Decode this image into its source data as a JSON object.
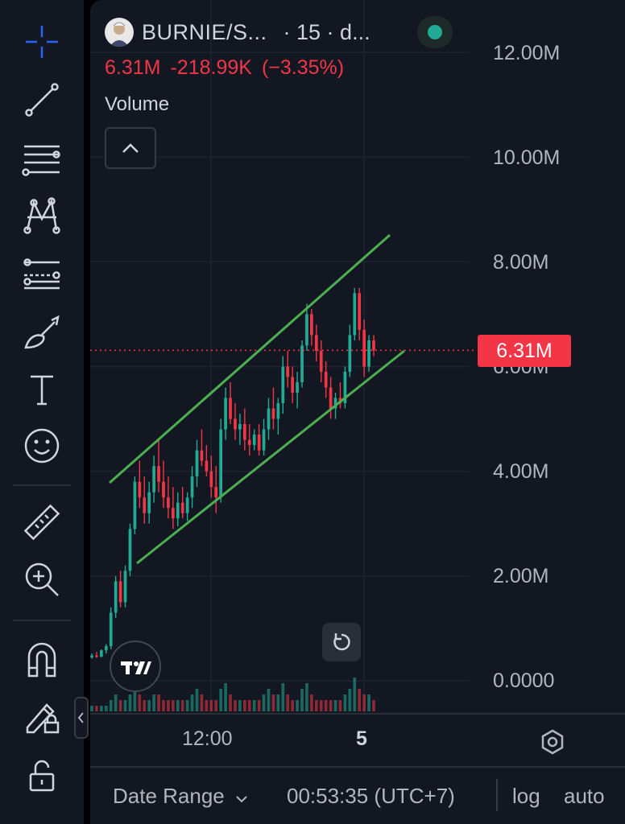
{
  "header": {
    "symbol": "BURNIE/S...",
    "interval": "· 15 · d...",
    "status_color": "#22ab94"
  },
  "price": {
    "last": "6.31M",
    "change": "-218.99K",
    "change_pct": "(−3.35%)",
    "tag": "6.31M"
  },
  "indicator": {
    "volume_label": "Volume"
  },
  "tools": [
    "crosshair-icon",
    "trend-line-icon",
    "fib-levels-icon",
    "pattern-icon",
    "forecast-icon",
    "brush-icon",
    "text-tool-icon",
    "emoji-icon",
    "ruler-icon",
    "zoom-in-icon",
    "magnet-icon",
    "lock-drawing-icon",
    "unlock-icon"
  ],
  "price_axis": [
    "12.00M",
    "10.00M",
    "8.00M",
    "6.00M",
    "4.00M",
    "2.00M",
    "0.0000"
  ],
  "time_axis": {
    "label_1": "12:00",
    "label_2": "5"
  },
  "bottom_bar": {
    "date_range": "Date Range",
    "clock": "00:53:35 (UTC+7)",
    "log": "log",
    "auto": "auto"
  },
  "colors": {
    "up": "#22ab94",
    "down": "#f23645",
    "channel": "#4caf50",
    "background": "#131722"
  },
  "chart_data": {
    "type": "candlestick",
    "interval": "15",
    "y_axis_ticks": [
      "12.00M",
      "10.00M",
      "8.00M",
      "6.00M",
      "4.00M",
      "2.00M",
      "0.0000"
    ],
    "ylim": [
      0,
      12800000
    ],
    "last_price": 6310000,
    "candles": [
      {
        "o": 0.45,
        "h": 0.52,
        "l": 0.42,
        "c": 0.48
      },
      {
        "o": 0.48,
        "h": 0.55,
        "l": 0.44,
        "c": 0.46
      },
      {
        "o": 0.46,
        "h": 0.6,
        "l": 0.45,
        "c": 0.58
      },
      {
        "o": 0.58,
        "h": 0.7,
        "l": 0.52,
        "c": 0.66
      },
      {
        "o": 0.66,
        "h": 1.4,
        "l": 0.6,
        "c": 1.3
      },
      {
        "o": 1.3,
        "h": 2.0,
        "l": 1.2,
        "c": 1.9
      },
      {
        "o": 1.9,
        "h": 2.1,
        "l": 1.4,
        "c": 1.5
      },
      {
        "o": 1.5,
        "h": 2.2,
        "l": 1.4,
        "c": 2.1
      },
      {
        "o": 2.1,
        "h": 3.0,
        "l": 2.0,
        "c": 2.9
      },
      {
        "o": 2.9,
        "h": 3.9,
        "l": 2.8,
        "c": 3.8
      },
      {
        "o": 3.8,
        "h": 4.2,
        "l": 3.3,
        "c": 3.5
      },
      {
        "o": 3.5,
        "h": 3.9,
        "l": 3.0,
        "c": 3.2
      },
      {
        "o": 3.2,
        "h": 3.8,
        "l": 3.0,
        "c": 3.6
      },
      {
        "o": 3.6,
        "h": 4.3,
        "l": 3.4,
        "c": 4.1
      },
      {
        "o": 4.1,
        "h": 4.6,
        "l": 3.6,
        "c": 3.8
      },
      {
        "o": 3.8,
        "h": 4.2,
        "l": 3.3,
        "c": 3.5
      },
      {
        "o": 3.5,
        "h": 3.9,
        "l": 3.1,
        "c": 3.3
      },
      {
        "o": 3.3,
        "h": 3.7,
        "l": 2.9,
        "c": 3.1
      },
      {
        "o": 3.1,
        "h": 3.6,
        "l": 2.95,
        "c": 3.4
      },
      {
        "o": 3.4,
        "h": 3.7,
        "l": 3.1,
        "c": 3.2
      },
      {
        "o": 3.2,
        "h": 3.6,
        "l": 3.05,
        "c": 3.5
      },
      {
        "o": 3.5,
        "h": 4.1,
        "l": 3.3,
        "c": 3.9
      },
      {
        "o": 3.9,
        "h": 4.6,
        "l": 3.7,
        "c": 4.4
      },
      {
        "o": 4.4,
        "h": 4.8,
        "l": 4.1,
        "c": 4.2
      },
      {
        "o": 4.2,
        "h": 4.5,
        "l": 3.9,
        "c": 4.0
      },
      {
        "o": 4.0,
        "h": 4.3,
        "l": 3.5,
        "c": 3.7
      },
      {
        "o": 3.7,
        "h": 4.1,
        "l": 3.2,
        "c": 3.5
      },
      {
        "o": 3.5,
        "h": 5.0,
        "l": 3.4,
        "c": 4.8
      },
      {
        "o": 4.8,
        "h": 5.6,
        "l": 4.6,
        "c": 5.4
      },
      {
        "o": 5.4,
        "h": 5.7,
        "l": 4.9,
        "c": 5.0
      },
      {
        "o": 5.0,
        "h": 5.3,
        "l": 4.6,
        "c": 4.8
      },
      {
        "o": 4.8,
        "h": 5.1,
        "l": 4.5,
        "c": 4.9
      },
      {
        "o": 4.9,
        "h": 5.2,
        "l": 4.4,
        "c": 4.6
      },
      {
        "o": 4.6,
        "h": 4.9,
        "l": 4.3,
        "c": 4.5
      },
      {
        "o": 4.5,
        "h": 4.8,
        "l": 4.4,
        "c": 4.7
      },
      {
        "o": 4.7,
        "h": 4.9,
        "l": 4.3,
        "c": 4.4
      },
      {
        "o": 4.4,
        "h": 5.0,
        "l": 4.3,
        "c": 4.8
      },
      {
        "o": 4.8,
        "h": 5.4,
        "l": 4.6,
        "c": 5.2
      },
      {
        "o": 5.2,
        "h": 5.6,
        "l": 4.8,
        "c": 5.0
      },
      {
        "o": 5.0,
        "h": 5.4,
        "l": 4.7,
        "c": 5.3
      },
      {
        "o": 5.3,
        "h": 6.2,
        "l": 5.1,
        "c": 6.0
      },
      {
        "o": 6.0,
        "h": 6.3,
        "l": 5.6,
        "c": 5.8
      },
      {
        "o": 5.8,
        "h": 6.0,
        "l": 5.3,
        "c": 5.5
      },
      {
        "o": 5.5,
        "h": 5.9,
        "l": 5.2,
        "c": 5.7
      },
      {
        "o": 5.7,
        "h": 6.5,
        "l": 5.6,
        "c": 6.4
      },
      {
        "o": 6.4,
        "h": 7.2,
        "l": 6.3,
        "c": 7.0
      },
      {
        "o": 7.0,
        "h": 7.1,
        "l": 6.4,
        "c": 6.6
      },
      {
        "o": 6.6,
        "h": 6.8,
        "l": 6.1,
        "c": 6.3
      },
      {
        "o": 6.3,
        "h": 6.5,
        "l": 5.7,
        "c": 5.9
      },
      {
        "o": 5.9,
        "h": 6.1,
        "l": 5.4,
        "c": 5.6
      },
      {
        "o": 5.6,
        "h": 5.8,
        "l": 5.0,
        "c": 5.2
      },
      {
        "o": 5.2,
        "h": 5.5,
        "l": 5.0,
        "c": 5.4
      },
      {
        "o": 5.4,
        "h": 5.7,
        "l": 5.2,
        "c": 5.3
      },
      {
        "o": 5.3,
        "h": 6.0,
        "l": 5.2,
        "c": 5.9
      },
      {
        "o": 5.9,
        "h": 6.8,
        "l": 5.8,
        "c": 6.6
      },
      {
        "o": 6.6,
        "h": 7.5,
        "l": 6.5,
        "c": 7.4
      },
      {
        "o": 7.4,
        "h": 7.5,
        "l": 6.5,
        "c": 6.7
      },
      {
        "o": 6.7,
        "h": 6.9,
        "l": 5.8,
        "c": 6.0
      },
      {
        "o": 6.0,
        "h": 6.6,
        "l": 5.9,
        "c": 6.5
      },
      {
        "o": 6.5,
        "h": 6.6,
        "l": 6.2,
        "c": 6.31
      }
    ],
    "volume": [
      1,
      1,
      1,
      1,
      2,
      3,
      2,
      2,
      3,
      4,
      3,
      2,
      2,
      3,
      3,
      2,
      2,
      2,
      2,
      2,
      2,
      3,
      4,
      3,
      2,
      2,
      2,
      4,
      5,
      3,
      2,
      2,
      2,
      2,
      2,
      2,
      3,
      4,
      3,
      3,
      5,
      3,
      2,
      2,
      4,
      5,
      3,
      2,
      2,
      2,
      2,
      2,
      2,
      3,
      4,
      6,
      4,
      3,
      3,
      2
    ]
  }
}
